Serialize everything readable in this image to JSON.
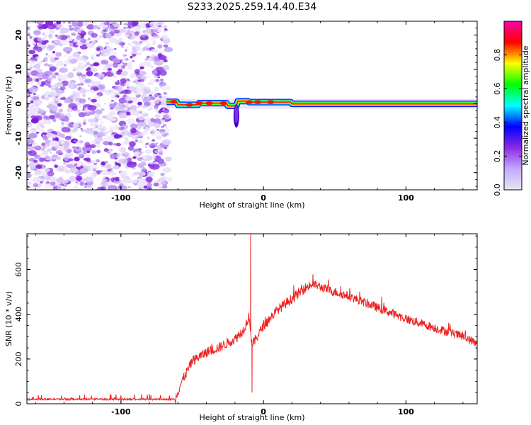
{
  "title": "S233.2025.259.14.40.E34",
  "chart_data": [
    {
      "type": "heatmap",
      "xlabel": "Height of straight line (km)",
      "ylabel": "Frequency (Hz)",
      "xlim": [
        -166,
        150
      ],
      "ylim": [
        -25,
        24
      ],
      "x_ticks": [
        -100,
        0,
        100
      ],
      "x_tick_labels": [
        "-100",
        "0",
        "100"
      ],
      "y_ticks": [
        -20,
        -10,
        0,
        10,
        20
      ],
      "y_tick_labels": [
        "-20",
        "-10",
        "0",
        "10",
        "20"
      ],
      "colorbar": {
        "label": "Normalized spectral amplitude",
        "range": [
          0,
          1
        ],
        "ticks": [
          0.0,
          0.2,
          0.4,
          0.6,
          0.8
        ],
        "tick_labels": [
          "0.0",
          "0.2",
          "0.4",
          "0.6",
          "0.8"
        ],
        "colors": [
          "#e6e6f2",
          "#c4a8ff",
          "#8a2be2",
          "#0000ff",
          "#00ffff",
          "#00ff00",
          "#ffff00",
          "#ff0000",
          "#ff00aa"
        ]
      },
      "regions": {
        "noise_band_x": [
          -166,
          -68
        ],
        "carrier_x": [
          -68,
          150
        ],
        "carrier_frequency": 0,
        "dip": {
          "x": -19,
          "frequency_min": -6
        }
      }
    },
    {
      "type": "line",
      "xlabel": "Height of straight line (km)",
      "ylabel": "SNR (10 * v/v)",
      "xlim": [
        -166,
        150
      ],
      "ylim": [
        0,
        760
      ],
      "x_ticks": [
        -100,
        0,
        100
      ],
      "x_tick_labels": [
        "-100",
        "0",
        "100"
      ],
      "y_ticks": [
        0,
        200,
        400,
        600
      ],
      "y_tick_labels": [
        "0",
        "200",
        "400",
        "600"
      ],
      "series_color": "#ee2222",
      "trend": {
        "x": [
          -166,
          -62,
          -58,
          -50,
          -40,
          -30,
          -20,
          -14,
          -10,
          -8,
          0,
          10,
          20,
          30,
          35,
          45,
          60,
          80,
          100,
          120,
          140,
          150
        ],
        "y": [
          20,
          20,
          90,
          190,
          230,
          255,
          290,
          330,
          390,
          260,
          350,
          420,
          470,
          520,
          535,
          510,
          480,
          430,
          380,
          340,
          300,
          270
        ]
      },
      "spikes": [
        {
          "x": -9,
          "y": 760
        },
        {
          "x": -8,
          "y": 50
        }
      ]
    }
  ]
}
